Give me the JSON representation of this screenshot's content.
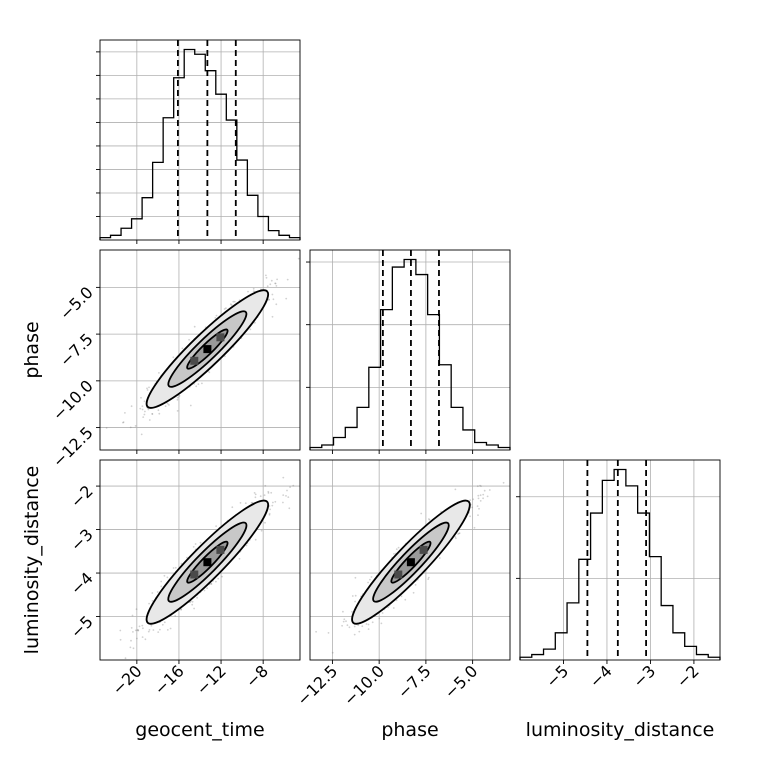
{
  "chart_data": {
    "type": "corner",
    "parameters": [
      {
        "name": "geocent_time",
        "label": "geocent_time",
        "range": [
          -23.5,
          -4.5
        ],
        "ticks": [
          -20,
          -16,
          -12,
          -8
        ],
        "tick_labels": [
          "−20",
          "−16",
          "−12",
          "−8"
        ],
        "quantiles": [
          -16.1,
          -13.3,
          -10.6
        ],
        "histogram": [
          1,
          2,
          5,
          9,
          18,
          33,
          52,
          69,
          81,
          79,
          72,
          62,
          51,
          34,
          19,
          10,
          4,
          2,
          1
        ]
      },
      {
        "name": "phase",
        "label": "phase",
        "range": [
          -13.7,
          -3.0
        ],
        "ticks": [
          -12.5,
          -10.0,
          -7.5,
          -5.0
        ],
        "tick_labels": [
          "−12.5",
          "−10.0",
          "−7.5",
          "−5.0"
        ],
        "quantiles": [
          -9.8,
          -8.3,
          -6.8
        ],
        "histogram": [
          1,
          2,
          5,
          9,
          17,
          33,
          56,
          73,
          76,
          70,
          54,
          34,
          17,
          8,
          3,
          2,
          1
        ]
      },
      {
        "name": "luminosity_distance",
        "label": "luminosity_distance",
        "range": [
          -6.0,
          -1.4
        ],
        "ticks": [
          -5,
          -4,
          -3,
          -2
        ],
        "tick_labels": [
          "−5",
          "−4",
          "−3",
          "−2"
        ],
        "quantiles": [
          -4.45,
          -3.75,
          -3.1
        ],
        "histogram": [
          1,
          2,
          4,
          10,
          21,
          37,
          54,
          66,
          70,
          64,
          54,
          38,
          20,
          10,
          5,
          2,
          1
        ]
      }
    ],
    "panels_2d": [
      {
        "x": "geocent_time",
        "y": "phase",
        "x_range": [
          -23.5,
          -4.5
        ],
        "y_range": [
          -13.7,
          -3.0
        ],
        "y_ticks": [
          -12.5,
          -10.0,
          -7.5,
          -5.0
        ],
        "y_tick_labels": [
          "−12.5",
          "−10.0",
          "−7.5",
          "−5.0"
        ]
      },
      {
        "x": "geocent_time",
        "y": "luminosity_distance",
        "x_range": [
          -23.5,
          -4.5
        ],
        "y_range": [
          -6.0,
          -1.4
        ],
        "y_ticks": [
          -5,
          -4,
          -3,
          -2
        ],
        "y_tick_labels": [
          "−5",
          "−4",
          "−3",
          "−2"
        ]
      },
      {
        "x": "phase",
        "y": "luminosity_distance",
        "x_range": [
          -13.7,
          -3.0
        ],
        "y_range": [
          -6.0,
          -1.4
        ]
      }
    ],
    "grid": true,
    "colors": {
      "line": "#000000",
      "grid": "#b0b0b0",
      "points": "#7a7a7a",
      "fill_outer": "#e8e8e8",
      "fill_inner": "#9a9a9a",
      "fill_core": "#000000"
    }
  }
}
